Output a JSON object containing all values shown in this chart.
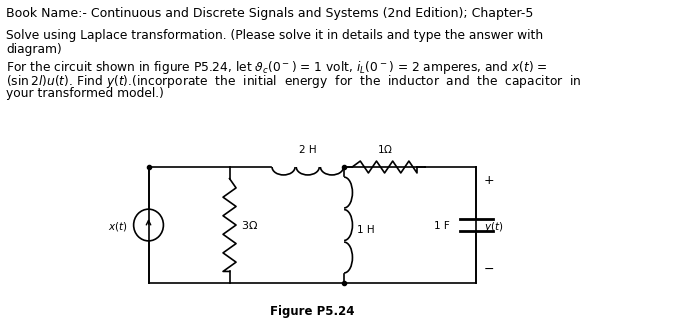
{
  "title_line": "Book Name:- Continuous and Discrete Signals and Systems (2nd Edition); Chapter-5",
  "line2": "Solve using Laplace transformation. (Please solve it in details and type the answer with",
  "line3": "diagram)",
  "line4": "For the circuit shown in figure P5.24, let ϑₙ(0⁻) = 1 volt, iₗ(0⁻) = 2 amperes, and x(t) =",
  "line5": "(sin 2l)u(t). Find y(t).(incorporate  the  initial  energy  for  the  inductor  and  the  capacitor  in",
  "line6": "your transformed model.)",
  "figure_label": "Figure P5.24",
  "bg_color": "#ffffff",
  "text_color": "#000000",
  "fig_width": 6.9,
  "fig_height": 3.36,
  "dpi": 100
}
